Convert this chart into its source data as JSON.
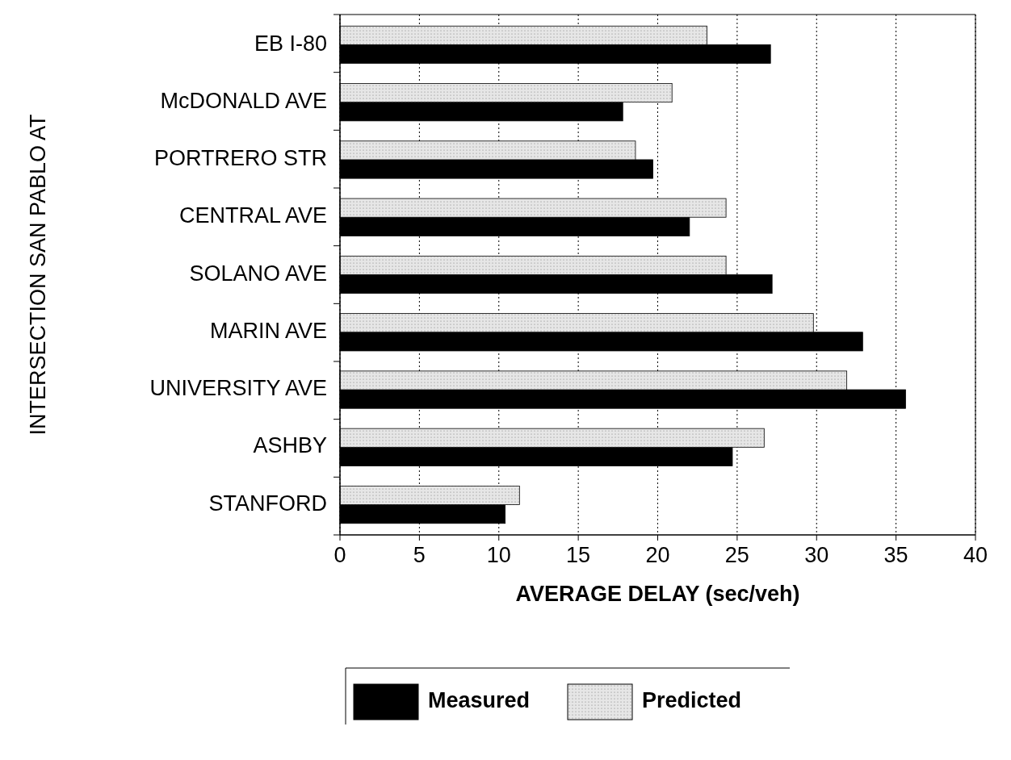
{
  "chart_data": {
    "type": "bar",
    "orientation": "horizontal",
    "categories": [
      "EB I-80",
      "McDONALD AVE",
      "PORTRERO STR",
      "CENTRAL AVE",
      "SOLANO AVE",
      "MARIN AVE",
      "UNIVERSITY AVE",
      "ASHBY",
      "STANFORD"
    ],
    "series": [
      {
        "name": "Measured",
        "color": "#000000",
        "values": [
          27.1,
          17.8,
          19.7,
          22.0,
          27.2,
          32.9,
          35.6,
          24.7,
          10.4
        ]
      },
      {
        "name": "Predicted",
        "color": "#e6e6e6",
        "values": [
          23.1,
          20.9,
          18.6,
          24.3,
          24.3,
          29.8,
          31.9,
          26.7,
          11.3
        ]
      }
    ],
    "xlim": [
      0,
      40
    ],
    "xticks": [
      0,
      5,
      10,
      15,
      20,
      25,
      30,
      35,
      40
    ],
    "grid": "x",
    "legend": "bottom",
    "xlabel": "AVERAGE DELAY (sec/veh)",
    "ylabel": "INTERSECTION SAN PABLO AT"
  }
}
